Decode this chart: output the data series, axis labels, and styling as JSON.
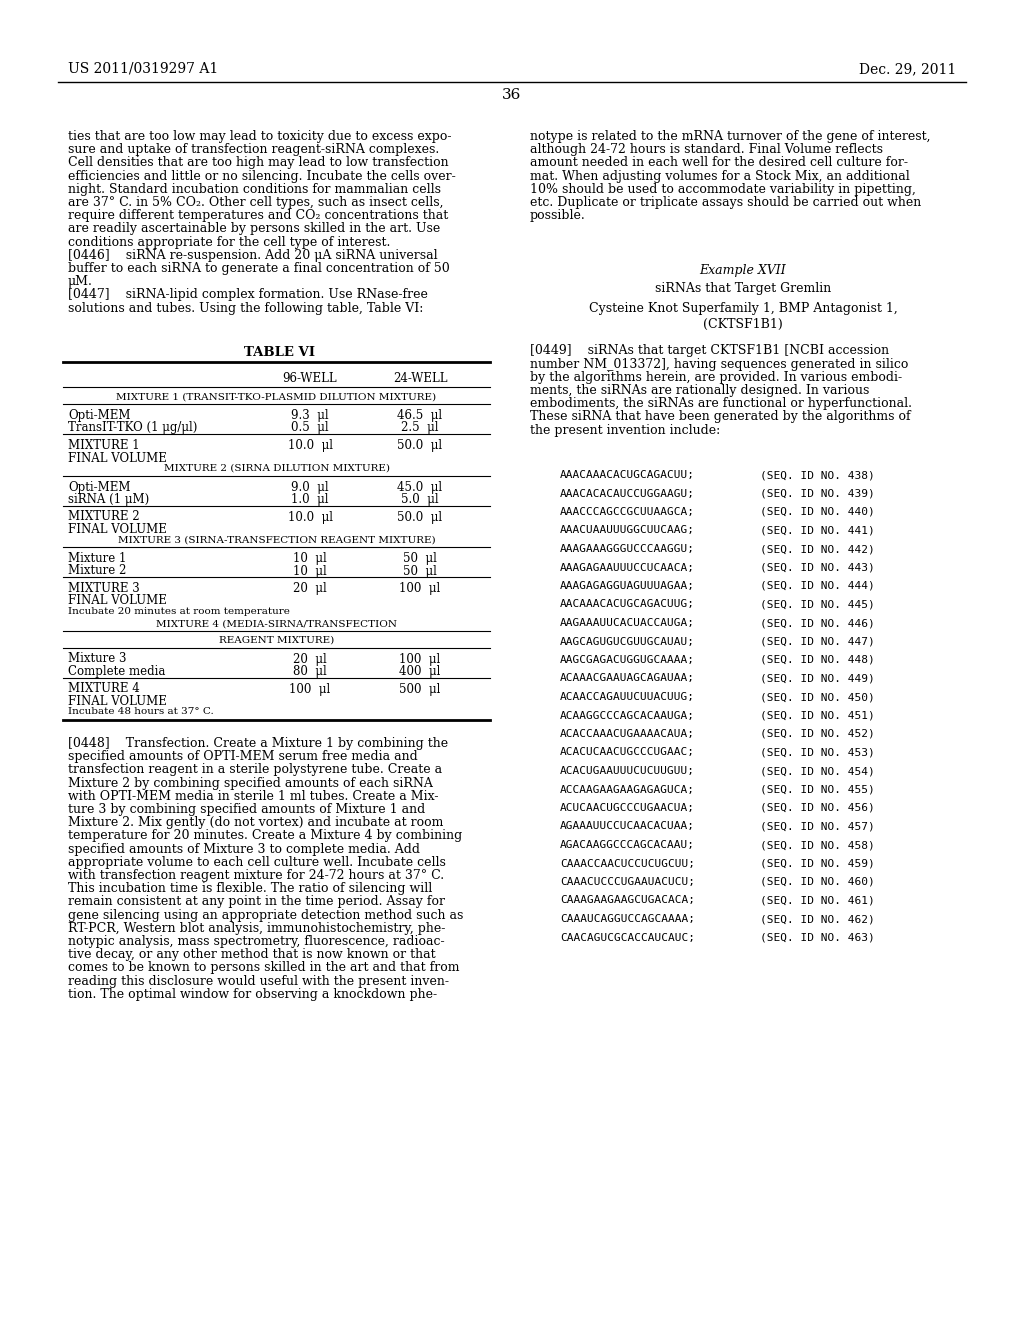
{
  "header_left": "US 2011/0319297 A1",
  "header_right": "Dec. 29, 2011",
  "page_number": "36",
  "bg_color": "#ffffff",
  "text_color": "#000000",
  "left_col_lines": [
    "ties that are too low may lead to toxicity due to excess expo-",
    "sure and uptake of transfection reagent-siRNA complexes.",
    "Cell densities that are too high may lead to low transfection",
    "efficiencies and little or no silencing. Incubate the cells over-",
    "night. Standard incubation conditions for mammalian cells",
    "are 37° C. in 5% CO₂. Other cell types, such as insect cells,",
    "require different temperatures and CO₂ concentrations that",
    "are readily ascertainable by persons skilled in the art. Use",
    "conditions appropriate for the cell type of interest.",
    "[0446]    siRNA re-suspension. Add 20 μA siRNA universal",
    "buffer to each siRNA to generate a final concentration of 50",
    "μM.",
    "[0447]    siRNA-lipid complex formation. Use RNase-free",
    "solutions and tubes. Using the following table, Table VI:"
  ],
  "right_col_lines": [
    "notype is related to the mRNA turnover of the gene of interest,",
    "although 24-72 hours is standard. Final Volume reflects",
    "amount needed in each well for the desired cell culture for-",
    "mat. When adjusting volumes for a Stock Mix, an additional",
    "10% should be used to accommodate variability in pipetting,",
    "etc. Duplicate or triplicate assays should be carried out when",
    "possible."
  ],
  "example_title": "Example XVII",
  "example_sub1": "siRNAs that Target Gremlin",
  "example_sub2": "Cysteine Knot Superfamily 1, BMP Antagonist 1,",
  "example_sub3": "(CKTSF1B1)",
  "para0449_lines": [
    "[0449]    siRNAs that target CKTSF1B1 [NCBI accession",
    "number NM_013372], having sequences generated in silico",
    "by the algorithms herein, are provided. In various embodi-",
    "ments, the siRNAs are rationally designed. In various",
    "embodiments, the siRNAs are functional or hyperfunctional.",
    "These siRNA that have been generated by the algorithms of",
    "the present invention include:"
  ],
  "table_title": "TABLE VI",
  "table_rows": [
    {
      "label": "96-WELL",
      "col2": "24-WELL",
      "type": "header"
    },
    {
      "label": "MIXTURE 1 (TRANSIT-TKO-PLASMID DILUTION MIXTURE)",
      "col2": "",
      "type": "section"
    },
    {
      "label": "Opti-MEM",
      "col2": "9.3  μl",
      "col3": "46.5  μl",
      "type": "data"
    },
    {
      "label": "TransIT-TKO (1 μg/μl)",
      "col2": "0.5  μl",
      "col3": "2.5  μl",
      "type": "data_ul"
    },
    {
      "label": "MIXTURE 1",
      "col2": "10.0  μl",
      "col3": "50.0  μl",
      "type": "data"
    },
    {
      "label": "FINAL VOLUME",
      "col2": "",
      "col3": "",
      "type": "data"
    },
    {
      "label": "MIXTURE 2 (SIRNA DILUTION MIXTURE)",
      "col2": "",
      "type": "section"
    },
    {
      "label": "Opti-MEM",
      "col2": "9.0  μl",
      "col3": "45.0  μl",
      "type": "data"
    },
    {
      "label": "siRNA (1 μM)",
      "col2": "1.0  μl",
      "col3": "5.0  μl",
      "type": "data_ul"
    },
    {
      "label": "MIXTURE 2",
      "col2": "10.0  μl",
      "col3": "50.0  μl",
      "type": "data"
    },
    {
      "label": "FINAL VOLUME",
      "col2": "",
      "col3": "",
      "type": "data"
    },
    {
      "label": "MIXTURE 3 (SIRNA-TRANSFECTION REAGENT MIXTURE)",
      "col2": "",
      "type": "section"
    },
    {
      "label": "Mixture 1",
      "col2": "10  μl",
      "col3": "50  μl",
      "type": "data"
    },
    {
      "label": "Mixture 2",
      "col2": "10  μl",
      "col3": "50  μl",
      "type": "data_ul"
    },
    {
      "label": "MIXTURE 3",
      "col2": "20  μl",
      "col3": "100  μl",
      "type": "data"
    },
    {
      "label": "FINAL VOLUME",
      "col2": "",
      "col3": "",
      "type": "data"
    },
    {
      "label": "Incubate 20 minutes at room temperature",
      "col2": "",
      "col3": "",
      "type": "data_small"
    },
    {
      "label": "MIXTURE 4 (MEDIA-SIRNA/TRANSFECTION",
      "col2": "",
      "type": "section"
    },
    {
      "label": "REAGENT MIXTURE)",
      "col2": "",
      "type": "section"
    },
    {
      "label": "Mixture 3",
      "col2": "20  μl",
      "col3": "100  μl",
      "type": "data"
    },
    {
      "label": "Complete media",
      "col2": "80  μl",
      "col3": "400  μl",
      "type": "data_ul"
    },
    {
      "label": "MIXTURE 4",
      "col2": "100  μl",
      "col3": "500  μl",
      "type": "data"
    },
    {
      "label": "FINAL VOLUME",
      "col2": "",
      "col3": "",
      "type": "data"
    },
    {
      "label": "Incubate 48 hours at 37° C.",
      "col2": "",
      "col3": "",
      "type": "data_small"
    }
  ],
  "para0448_lines": [
    "[0448]    Transfection. Create a Mixture 1 by combining the",
    "specified amounts of OPTI-MEM serum free media and",
    "transfection reagent in a sterile polystyrene tube. Create a",
    "Mixture 2 by combining specified amounts of each siRNA",
    "with OPTI-MEM media in sterile 1 ml tubes. Create a Mix-",
    "ture 3 by combining specified amounts of Mixture 1 and",
    "Mixture 2. Mix gently (do not vortex) and incubate at room",
    "temperature for 20 minutes. Create a Mixture 4 by combining",
    "specified amounts of Mixture 3 to complete media. Add",
    "appropriate volume to each cell culture well. Incubate cells",
    "with transfection reagent mixture for 24-72 hours at 37° C.",
    "This incubation time is flexible. The ratio of silencing will",
    "remain consistent at any point in the time period. Assay for",
    "gene silencing using an appropriate detection method such as",
    "RT-PCR, Western blot analysis, immunohistochemistry, phe-",
    "notypic analysis, mass spectrometry, fluorescence, radioac-",
    "tive decay, or any other method that is now known or that",
    "comes to be known to persons skilled in the art and that from",
    "reading this disclosure would useful with the present inven-",
    "tion. The optimal window for observing a knockdown phe-"
  ],
  "sequences": [
    {
      "seq": "AAACAAACACUGCAGACUU;",
      "id": "(SEQ. ID NO. 438)"
    },
    {
      "seq": "AAACACACAUCCUGGAAGU;",
      "id": "(SEQ. ID NO. 439)"
    },
    {
      "seq": "AAACCCAGCCGCUUAAGCA;",
      "id": "(SEQ. ID NO. 440)"
    },
    {
      "seq": "AAACUAAUUUGGCUUCAAG;",
      "id": "(SEQ. ID NO. 441)"
    },
    {
      "seq": "AAAGAAAGGGUCCCAAGGU;",
      "id": "(SEQ. ID NO. 442)"
    },
    {
      "seq": "AAAGAGAAUUUCCUCAACA;",
      "id": "(SEQ. ID NO. 443)"
    },
    {
      "seq": "AAAGAGAGGUAGUUUAGAA;",
      "id": "(SEQ. ID NO. 444)"
    },
    {
      "seq": "AACAAACACUGCAGACUUG;",
      "id": "(SEQ. ID NO. 445)"
    },
    {
      "seq": "AAGAAAUUCACUACCAUGA;",
      "id": "(SEQ. ID NO. 446)"
    },
    {
      "seq": "AAGCAGUGUCGUUGCAUAU;",
      "id": "(SEQ. ID NO. 447)"
    },
    {
      "seq": "AAGCGAGACUGGUGCAAAA;",
      "id": "(SEQ. ID NO. 448)"
    },
    {
      "seq": "ACAAACGAAUAGCAGAUAA;",
      "id": "(SEQ. ID NO. 449)"
    },
    {
      "seq": "ACAACCAGAUUCUUACUUG;",
      "id": "(SEQ. ID NO. 450)"
    },
    {
      "seq": "ACAAGGCCCAGCACAAUGA;",
      "id": "(SEQ. ID NO. 451)"
    },
    {
      "seq": "ACACCAAACUGAAAACAUA;",
      "id": "(SEQ. ID NO. 452)"
    },
    {
      "seq": "ACACUCAACUGCCCUGAAC;",
      "id": "(SEQ. ID NO. 453)"
    },
    {
      "seq": "ACACUGAAUUUCUCUUGUU;",
      "id": "(SEQ. ID NO. 454)"
    },
    {
      "seq": "ACCAAGAAGAAGAGAGUCA;",
      "id": "(SEQ. ID NO. 455)"
    },
    {
      "seq": "ACUCAACUGCCCUGAACUA;",
      "id": "(SEQ. ID NO. 456)"
    },
    {
      "seq": "AGAAAUUCCUCAACACUAA;",
      "id": "(SEQ. ID NO. 457)"
    },
    {
      "seq": "AGACAAGGCCCAGCACAAU;",
      "id": "(SEQ. ID NO. 458)"
    },
    {
      "seq": "CAAACCAACUCCUCUGCUU;",
      "id": "(SEQ. ID NO. 459)"
    },
    {
      "seq": "CAAACUCCCUGAAUACUCU;",
      "id": "(SEQ. ID NO. 460)"
    },
    {
      "seq": "CAAAGAAGAAGCUGACACA;",
      "id": "(SEQ. ID NO. 461)"
    },
    {
      "seq": "CAAAUCAGGUCCAGCAAAA;",
      "id": "(SEQ. ID NO. 462)"
    },
    {
      "seq": "CAACAGUCGCACCAUCAUC;",
      "id": "(SEQ. ID NO. 463)"
    }
  ]
}
